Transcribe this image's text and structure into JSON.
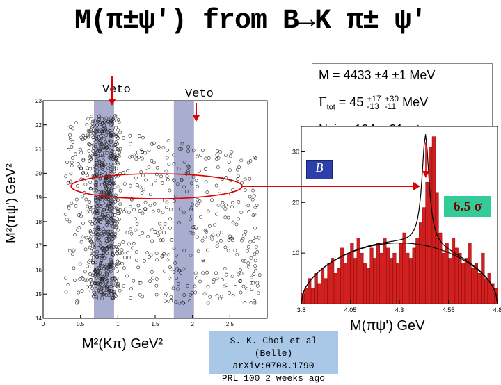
{
  "slide": {
    "title": "M(π±ψ') from B→K π± ψ'",
    "veto_left": "Veto",
    "veto_right": "Veto",
    "y_axis_label": "M²(πψ') GeV²",
    "x_axis_left_label": "M²(Kπ) GeV²",
    "x_axis_right_label": "M(πψ') GeV",
    "reference": [
      "S.-K. Choi et al (Belle)",
      "arXiv:0708.1790",
      "PRL 100 2 weeks ago"
    ],
    "significance": "6.5 σ",
    "logo_text": "B",
    "info": {
      "mass": "M = 4433 ±4 ±1 MeV",
      "width_prefix": "Γ",
      "width_sub": "tot",
      "width_value": " = 45 ",
      "width_err1_up": "+17",
      "width_err1_dn": "-13",
      "width_err2_up": "+30",
      "width_err2_dn": "-11",
      "width_unit": " MeV",
      "nsig": "Nsig =124 ± 31evts"
    }
  },
  "chart_data": [
    {
      "type": "scatter",
      "xlabel": "M²(Kπ) GeV²",
      "ylabel": "M²(πψ') GeV²",
      "xlim": [
        0,
        3.0
      ],
      "ylim": [
        14,
        23
      ],
      "x_ticks": [
        "0",
        "0.5",
        "1",
        "1.5",
        "2",
        "2.5"
      ],
      "y_ticks": [
        "14",
        "15",
        "16",
        "17",
        "18",
        "19",
        "20",
        "21",
        "22",
        "23"
      ],
      "veto_bands": [
        [
          0.68,
          0.95
        ],
        [
          1.75,
          2.02
        ]
      ],
      "highlight_y_range": [
        19.2,
        20.1
      ],
      "density_note": "dense vertical band at x≈0.8 (K*), sparse elsewhere"
    },
    {
      "type": "bar",
      "xlabel": "M(πψ') GeV",
      "xlim": [
        3.8,
        4.8
      ],
      "ylim": [
        0,
        35
      ],
      "x_ticks": [
        "3.8",
        "4.05",
        "4.3",
        "4.55",
        "4.8"
      ],
      "y_ticks": [
        "10",
        "20",
        "30"
      ],
      "values": [
        2,
        3,
        5,
        3,
        6,
        4,
        7,
        5,
        8,
        9,
        6,
        7,
        11,
        8,
        10,
        12,
        9,
        13,
        10,
        8,
        7,
        11,
        9,
        12,
        10,
        13,
        11,
        9,
        10,
        8,
        12,
        14,
        10,
        9,
        11,
        13,
        16,
        19,
        24,
        31,
        33,
        22,
        14,
        10,
        12,
        9,
        13,
        11,
        10,
        8,
        9,
        12,
        7,
        8,
        6,
        10,
        5,
        6,
        4,
        3
      ],
      "peak_mass": 4.433
    }
  ]
}
